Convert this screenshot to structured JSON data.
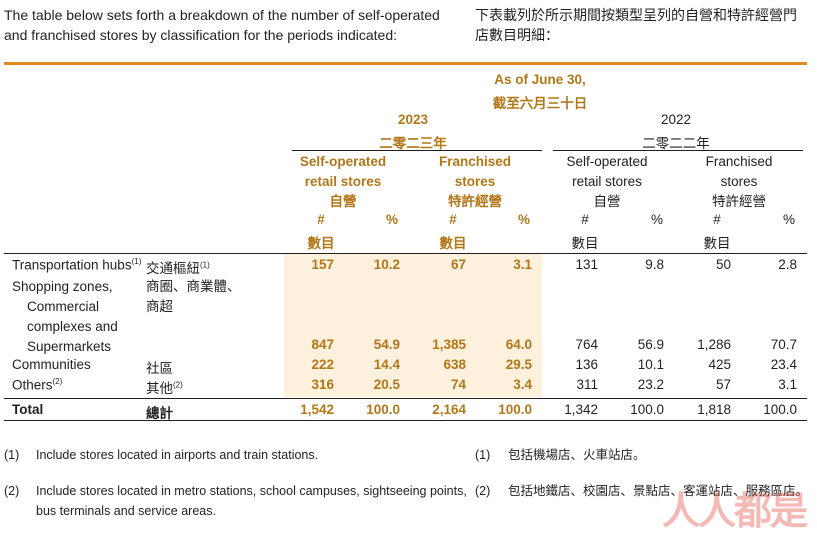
{
  "intro": {
    "en_line1": "The table below sets forth a breakdown of the number of self-operated",
    "en_line2": "and franchised stores by classification for the periods indicated:",
    "zh_line1": "下表載列於所示期間按類型呈列的自營和特許經營門",
    "zh_line2": "店數目明細："
  },
  "header": {
    "as_of_en": "As of June 30,",
    "as_of_zh": "截至六月三十日",
    "y2023": "2023",
    "y2023_zh": "二零二三年",
    "y2022": "2022",
    "y2022_zh": "二零二二年",
    "groups_2023": [
      {
        "l1": "Self-operated",
        "l2": "retail stores",
        "zh": "自營"
      },
      {
        "l1": "Franchised",
        "l2": "stores",
        "zh": "特許經營"
      }
    ],
    "groups_2022": [
      {
        "l1": "Self-operated",
        "l2": "retail stores",
        "zh": "自營"
      },
      {
        "l1": "Franchised",
        "l2": "stores",
        "zh": "特許經營"
      }
    ],
    "num": "#",
    "pct": "%",
    "num_zh": "數目"
  },
  "rows": [
    {
      "en": "Transportation hubs",
      "sup_en": "(1)",
      "zh": "交通樞紐",
      "sup_zh": "(1)",
      "values": [
        "157",
        "10.2",
        "67",
        "3.1",
        "131",
        "9.8",
        "50",
        "2.8"
      ]
    },
    {
      "en1": "Shopping zones,",
      "en2": "Commercial",
      "en3": "complexes and",
      "en4": "Supermarkets",
      "zh1": "商圈、商業體、",
      "zh2": "商超",
      "values": [
        "847",
        "54.9",
        "1,385",
        "64.0",
        "764",
        "56.9",
        "1,286",
        "70.7"
      ]
    },
    {
      "en": "Communities",
      "zh": "社區",
      "values": [
        "222",
        "14.4",
        "638",
        "29.5",
        "136",
        "10.1",
        "425",
        "23.4"
      ]
    },
    {
      "en": "Others",
      "sup_en": "(2)",
      "zh": "其他",
      "sup_zh": "(2)",
      "values": [
        "316",
        "20.5",
        "74",
        "3.4",
        "311",
        "23.2",
        "57",
        "3.1"
      ]
    }
  ],
  "total": {
    "en": "Total",
    "zh": "總計",
    "values": [
      "1,542",
      "100.0",
      "2,164",
      "100.0",
      "1,342",
      "100.0",
      "1,818",
      "100.0"
    ]
  },
  "footnotes": [
    {
      "mark": "(1)",
      "en": "Include stores located in airports and train stations.",
      "zh_mark": "(1)",
      "zh": "包括機場店、火車站店。"
    },
    {
      "mark": "(2)",
      "en1": "Include stores located in metro stations, school campuses, sightseeing points,",
      "en2": "bus terminals and service areas.",
      "zh_mark": "(2)",
      "zh": "包括地鐵店、校園店、景點店、客運站店、服務區店。"
    }
  ],
  "watermark": "人人都是"
}
